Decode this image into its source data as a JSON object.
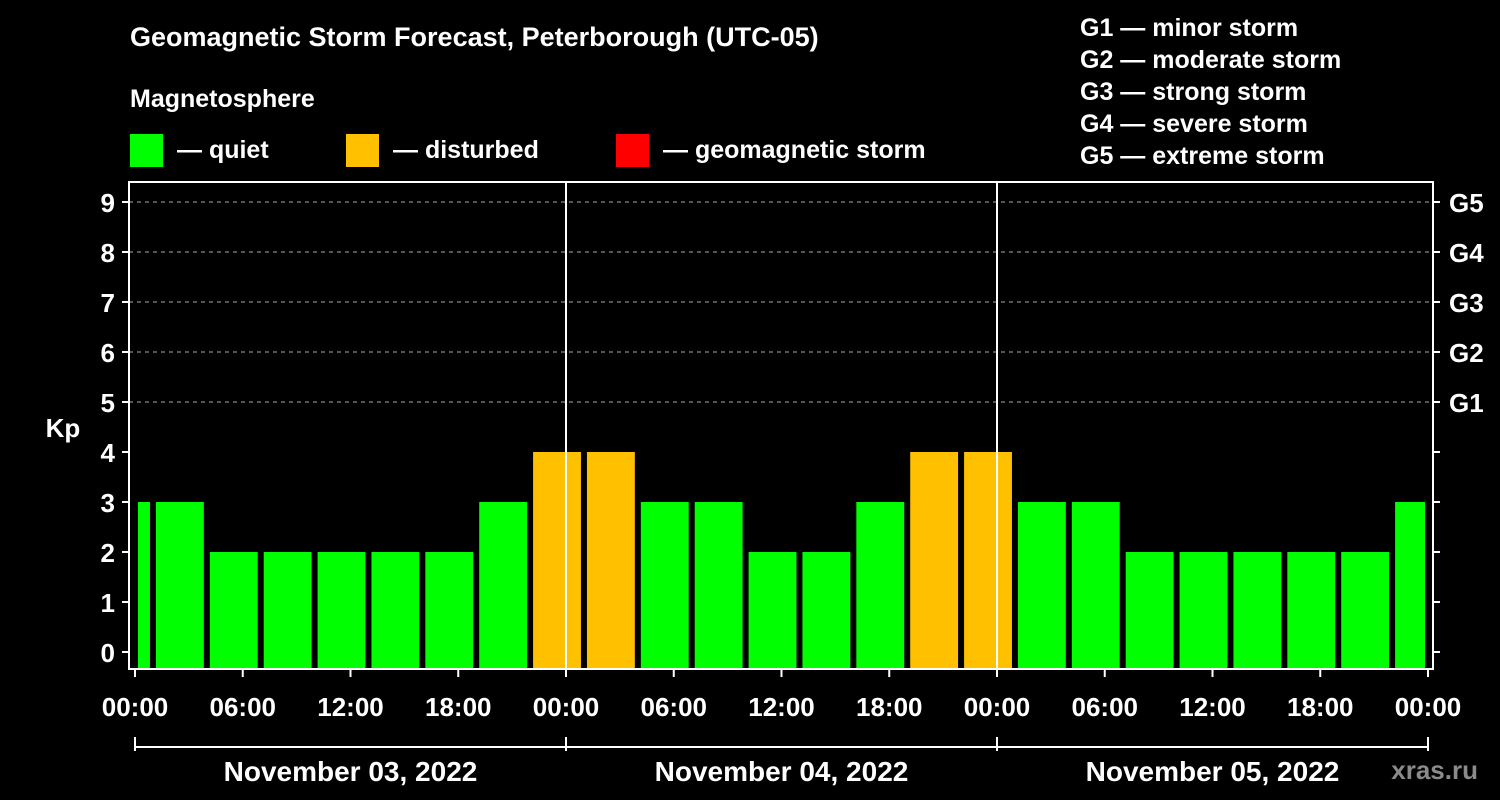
{
  "title": "Geomagnetic Storm Forecast, Peterborough (UTC-05)",
  "magnetosphere_legend": {
    "title": "Magnetosphere",
    "items": [
      {
        "label": "— quiet",
        "color": "#00ff00"
      },
      {
        "label": "— disturbed",
        "color": "#ffc000"
      },
      {
        "label": "— geomagnetic storm",
        "color": "#ff0000"
      }
    ]
  },
  "storm_levels": [
    "G1 — minor storm",
    "G2 — moderate storm",
    "G3 — strong storm",
    "G4 — severe storm",
    "G5 — extreme storm"
  ],
  "watermark": "xras.ru",
  "chart_data": {
    "type": "bar",
    "ylabel": "Kp",
    "ylim": [
      0,
      9
    ],
    "yticks": [
      0,
      1,
      2,
      3,
      4,
      5,
      6,
      7,
      8,
      9
    ],
    "right_ticks": [
      {
        "value": 5,
        "label": "G1"
      },
      {
        "value": 6,
        "label": "G2"
      },
      {
        "value": 7,
        "label": "G3"
      },
      {
        "value": 8,
        "label": "G4"
      },
      {
        "value": 9,
        "label": "G5"
      }
    ],
    "x_tick_labels": [
      "00:00",
      "06:00",
      "12:00",
      "18:00",
      "00:00",
      "06:00",
      "12:00",
      "18:00",
      "00:00",
      "06:00",
      "12:00",
      "18:00",
      "00:00"
    ],
    "x_tick_hours": [
      0,
      6,
      12,
      18,
      24,
      30,
      36,
      42,
      48,
      54,
      60,
      66,
      72
    ],
    "xlim_hours": [
      0,
      72
    ],
    "day_separators_hours": [
      24,
      48
    ],
    "days": [
      {
        "label": "November 03, 2022",
        "start_hour": 0,
        "end_hour": 24
      },
      {
        "label": "November 04, 2022",
        "start_hour": 24,
        "end_hour": 48
      },
      {
        "label": "November 05, 2022",
        "start_hour": 48,
        "end_hour": 72
      }
    ],
    "grid": "dashed horizontal at 5, 6, 7, 8, 9",
    "bars": [
      {
        "start_hour": 0,
        "end_hour": 1,
        "kp": 3,
        "status": "quiet"
      },
      {
        "start_hour": 1,
        "end_hour": 4,
        "kp": 3,
        "status": "quiet"
      },
      {
        "start_hour": 4,
        "end_hour": 7,
        "kp": 2,
        "status": "quiet"
      },
      {
        "start_hour": 7,
        "end_hour": 10,
        "kp": 2,
        "status": "quiet"
      },
      {
        "start_hour": 10,
        "end_hour": 13,
        "kp": 2,
        "status": "quiet"
      },
      {
        "start_hour": 13,
        "end_hour": 16,
        "kp": 2,
        "status": "quiet"
      },
      {
        "start_hour": 16,
        "end_hour": 19,
        "kp": 2,
        "status": "quiet"
      },
      {
        "start_hour": 19,
        "end_hour": 22,
        "kp": 3,
        "status": "quiet"
      },
      {
        "start_hour": 22,
        "end_hour": 25,
        "kp": 4,
        "status": "disturbed"
      },
      {
        "start_hour": 25,
        "end_hour": 28,
        "kp": 4,
        "status": "disturbed"
      },
      {
        "start_hour": 28,
        "end_hour": 31,
        "kp": 3,
        "status": "quiet"
      },
      {
        "start_hour": 31,
        "end_hour": 34,
        "kp": 3,
        "status": "quiet"
      },
      {
        "start_hour": 34,
        "end_hour": 37,
        "kp": 2,
        "status": "quiet"
      },
      {
        "start_hour": 37,
        "end_hour": 40,
        "kp": 2,
        "status": "quiet"
      },
      {
        "start_hour": 40,
        "end_hour": 43,
        "kp": 3,
        "status": "quiet"
      },
      {
        "start_hour": 43,
        "end_hour": 46,
        "kp": 4,
        "status": "disturbed"
      },
      {
        "start_hour": 46,
        "end_hour": 49,
        "kp": 4,
        "status": "disturbed"
      },
      {
        "start_hour": 49,
        "end_hour": 52,
        "kp": 3,
        "status": "quiet"
      },
      {
        "start_hour": 52,
        "end_hour": 55,
        "kp": 3,
        "status": "quiet"
      },
      {
        "start_hour": 55,
        "end_hour": 58,
        "kp": 2,
        "status": "quiet"
      },
      {
        "start_hour": 58,
        "end_hour": 61,
        "kp": 2,
        "status": "quiet"
      },
      {
        "start_hour": 61,
        "end_hour": 64,
        "kp": 2,
        "status": "quiet"
      },
      {
        "start_hour": 64,
        "end_hour": 67,
        "kp": 2,
        "status": "quiet"
      },
      {
        "start_hour": 67,
        "end_hour": 70,
        "kp": 2,
        "status": "quiet"
      },
      {
        "start_hour": 70,
        "end_hour": 72,
        "kp": 3,
        "status": "quiet"
      }
    ],
    "status_colors": {
      "quiet": "#00ff00",
      "disturbed": "#ffc000",
      "storm": "#ff0000"
    }
  }
}
